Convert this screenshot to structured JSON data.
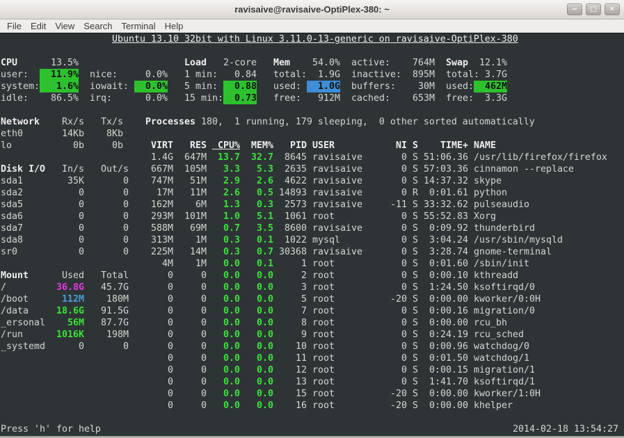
{
  "window": {
    "title": "ravisaive@ravisaive-OptiPlex-380: ~",
    "buttons": {
      "minimize": "−",
      "maximize": "□",
      "close": "✕"
    }
  },
  "menu": {
    "items": [
      "File",
      "Edit",
      "View",
      "Search",
      "Terminal",
      "Help"
    ]
  },
  "banner": "Ubuntu 13.10 32bit with Linux 3.11.0-13-generic on ravisaive-OptiPlex-380",
  "cpu": {
    "title": "CPU",
    "total": "13.5%",
    "user_label": "user:",
    "user": "11.9%",
    "nice_label": "nice:",
    "nice": "0.0%",
    "system_label": "system:",
    "system": "1.6%",
    "iowait_label": "iowait:",
    "iowait": "0.0%",
    "idle_label": "idle:",
    "idle": "86.5%",
    "irq_label": "irq:",
    "irq": "0.0%"
  },
  "load": {
    "title": "Load",
    "cores": "2-core",
    "min1_label": "1 min:",
    "min1": "0.84",
    "min5_label": "5 min:",
    "min5": "0.88",
    "min15_label": "15 min:",
    "min15": "0.73"
  },
  "mem": {
    "title": "Mem",
    "percent": "54.0%",
    "total_label": "total:",
    "total": "1.9G",
    "used_label": "used:",
    "used": "1.0G",
    "free_label": "free:",
    "free": "912M",
    "active_label": "active:",
    "active": "764M",
    "inactive_label": "inactive:",
    "inactive": "895M",
    "buffers_label": "buffers:",
    "buffers": "30M",
    "cached_label": "cached:",
    "cached": "653M"
  },
  "swap": {
    "title": "Swap",
    "percent": "12.1%",
    "total_label": "total:",
    "total": "3.7G",
    "used_label": "used:",
    "used": "462M",
    "free_label": "free:",
    "free": "3.3G"
  },
  "network": {
    "title": "Network",
    "col1": "Rx/s",
    "col2": "Tx/s",
    "rows": [
      {
        "name": "eth0",
        "rx": "14Kb",
        "tx": "8Kb"
      },
      {
        "name": "lo",
        "rx": "0b",
        "tx": "0b"
      }
    ]
  },
  "diskio": {
    "title": "Disk I/O",
    "col1": "In/s",
    "col2": "Out/s",
    "rows": [
      {
        "name": "sda1",
        "in": "35K",
        "out": "0"
      },
      {
        "name": "sda2",
        "in": "0",
        "out": "0"
      },
      {
        "name": "sda5",
        "in": "0",
        "out": "0"
      },
      {
        "name": "sda6",
        "in": "0",
        "out": "0"
      },
      {
        "name": "sda7",
        "in": "0",
        "out": "0"
      },
      {
        "name": "sda8",
        "in": "0",
        "out": "0"
      },
      {
        "name": "sr0",
        "in": "0",
        "out": "0"
      }
    ]
  },
  "mount": {
    "title": "Mount",
    "col1": "Used",
    "col2": "Total",
    "rows": [
      {
        "name": "/",
        "used": "36.8G",
        "used_color": "magenta",
        "total": "45.7G"
      },
      {
        "name": "/boot",
        "used": "112M",
        "used_color": "blue",
        "total": "180M"
      },
      {
        "name": "/data",
        "used": "18.6G",
        "used_color": "green",
        "total": "91.5G"
      },
      {
        "name": "_ersonal",
        "used": "56M",
        "used_color": "green",
        "total": "87.7G"
      },
      {
        "name": "/run",
        "used": "1016K",
        "used_color": "green",
        "total": "198M"
      },
      {
        "name": "_systemd",
        "used": "0",
        "used_color": "fg",
        "total": "0"
      }
    ]
  },
  "processes": {
    "summary_title": "Processes",
    "summary_rest": " 180,  1 running, 179 sleeping,  0 other sorted automatically",
    "headers": {
      "virt": "VIRT",
      "res": "RES",
      "cpu": " CPU%",
      "mem": "MEM%",
      "pid": "PID",
      "user": "USER",
      "ni": "NI",
      "s": "S",
      "time": "TIME+",
      "name": "NAME"
    },
    "rows": [
      {
        "virt": "1.4G",
        "res": "647M",
        "cpu": "13.7",
        "mem": "32.7",
        "pid": "8645",
        "user": "ravisaive",
        "ni": "0",
        "s": "S",
        "time": "51:06.36",
        "name": "/usr/lib/firefox/firefox"
      },
      {
        "virt": "667M",
        "res": "105M",
        "cpu": "3.3",
        "mem": "5.3",
        "pid": "2635",
        "user": "ravisaive",
        "ni": "0",
        "s": "S",
        "time": "57:03.36",
        "name": "cinnamon --replace"
      },
      {
        "virt": "747M",
        "res": "51M",
        "cpu": "2.9",
        "mem": "2.6",
        "pid": "4622",
        "user": "ravisaive",
        "ni": "0",
        "s": "S",
        "time": "14:37.32",
        "name": "skype"
      },
      {
        "virt": "17M",
        "res": "11M",
        "cpu": "2.6",
        "mem": "0.5",
        "pid": "14893",
        "user": "ravisaive",
        "ni": "0",
        "s": "R",
        "time": "0:01.61",
        "name": "python"
      },
      {
        "virt": "162M",
        "res": "6M",
        "cpu": "1.3",
        "mem": "0.3",
        "pid": "2573",
        "user": "ravisaive",
        "ni": "-11",
        "s": "S",
        "time": "33:32.62",
        "name": "pulseaudio"
      },
      {
        "virt": "293M",
        "res": "101M",
        "cpu": "1.0",
        "mem": "5.1",
        "pid": "1061",
        "user": "root",
        "ni": "0",
        "s": "S",
        "time": "55:52.83",
        "name": "Xorg"
      },
      {
        "virt": "588M",
        "res": "69M",
        "cpu": "0.7",
        "mem": "3.5",
        "pid": "8600",
        "user": "ravisaive",
        "ni": "0",
        "s": "S",
        "time": "0:09.92",
        "name": "thunderbird"
      },
      {
        "virt": "313M",
        "res": "1M",
        "cpu": "0.3",
        "mem": "0.1",
        "pid": "1022",
        "user": "mysql",
        "ni": "0",
        "s": "S",
        "time": "3:04.24",
        "name": "/usr/sbin/mysqld"
      },
      {
        "virt": "225M",
        "res": "14M",
        "cpu": "0.3",
        "mem": "0.7",
        "pid": "30368",
        "user": "ravisaive",
        "ni": "0",
        "s": "S",
        "time": "3:28.74",
        "name": "gnome-terminal"
      },
      {
        "virt": "4M",
        "res": "1M",
        "cpu": "0.0",
        "mem": "0.1",
        "pid": "1",
        "user": "root",
        "ni": "0",
        "s": "S",
        "time": "0:01.60",
        "name": "/sbin/init"
      },
      {
        "virt": "0",
        "res": "0",
        "cpu": "0.0",
        "mem": "0.0",
        "pid": "2",
        "user": "root",
        "ni": "0",
        "s": "S",
        "time": "0:00.10",
        "name": "kthreadd"
      },
      {
        "virt": "0",
        "res": "0",
        "cpu": "0.0",
        "mem": "0.0",
        "pid": "3",
        "user": "root",
        "ni": "0",
        "s": "S",
        "time": "1:24.50",
        "name": "ksoftirqd/0"
      },
      {
        "virt": "0",
        "res": "0",
        "cpu": "0.0",
        "mem": "0.0",
        "pid": "5",
        "user": "root",
        "ni": "-20",
        "s": "S",
        "time": "0:00.00",
        "name": "kworker/0:0H"
      },
      {
        "virt": "0",
        "res": "0",
        "cpu": "0.0",
        "mem": "0.0",
        "pid": "7",
        "user": "root",
        "ni": "0",
        "s": "S",
        "time": "0:00.16",
        "name": "migration/0"
      },
      {
        "virt": "0",
        "res": "0",
        "cpu": "0.0",
        "mem": "0.0",
        "pid": "8",
        "user": "root",
        "ni": "0",
        "s": "S",
        "time": "0:00.00",
        "name": "rcu_bh"
      },
      {
        "virt": "0",
        "res": "0",
        "cpu": "0.0",
        "mem": "0.0",
        "pid": "9",
        "user": "root",
        "ni": "0",
        "s": "S",
        "time": "0:24.19",
        "name": "rcu_sched"
      },
      {
        "virt": "0",
        "res": "0",
        "cpu": "0.0",
        "mem": "0.0",
        "pid": "10",
        "user": "root",
        "ni": "0",
        "s": "S",
        "time": "0:00.96",
        "name": "watchdog/0"
      },
      {
        "virt": "0",
        "res": "0",
        "cpu": "0.0",
        "mem": "0.0",
        "pid": "11",
        "user": "root",
        "ni": "0",
        "s": "S",
        "time": "0:01.50",
        "name": "watchdog/1"
      },
      {
        "virt": "0",
        "res": "0",
        "cpu": "0.0",
        "mem": "0.0",
        "pid": "12",
        "user": "root",
        "ni": "0",
        "s": "S",
        "time": "0:00.15",
        "name": "migration/1"
      },
      {
        "virt": "0",
        "res": "0",
        "cpu": "0.0",
        "mem": "0.0",
        "pid": "13",
        "user": "root",
        "ni": "0",
        "s": "S",
        "time": "1:41.70",
        "name": "ksoftirqd/1"
      },
      {
        "virt": "0",
        "res": "0",
        "cpu": "0.0",
        "mem": "0.0",
        "pid": "15",
        "user": "root",
        "ni": "-20",
        "s": "S",
        "time": "0:00.00",
        "name": "kworker/1:0H"
      },
      {
        "virt": "0",
        "res": "0",
        "cpu": "0.0",
        "mem": "0.0",
        "pid": "16",
        "user": "root",
        "ni": "-20",
        "s": "S",
        "time": "0:00.00",
        "name": "khelper"
      }
    ]
  },
  "statusbar": {
    "help": "Press 'h' for help",
    "datetime": "2014-02-18 13:54:27"
  },
  "colors": {
    "terminal_bg": "#2e3436",
    "terminal_fg": "#d3d7cf",
    "bold_fg": "#eeeeec",
    "green_bg": "#2ec12e",
    "blue_bg": "#3d8ed6",
    "green_fg": "#3ae23a",
    "magenta_fg": "#e43ae4",
    "blue_fg": "#4b9bd8"
  }
}
